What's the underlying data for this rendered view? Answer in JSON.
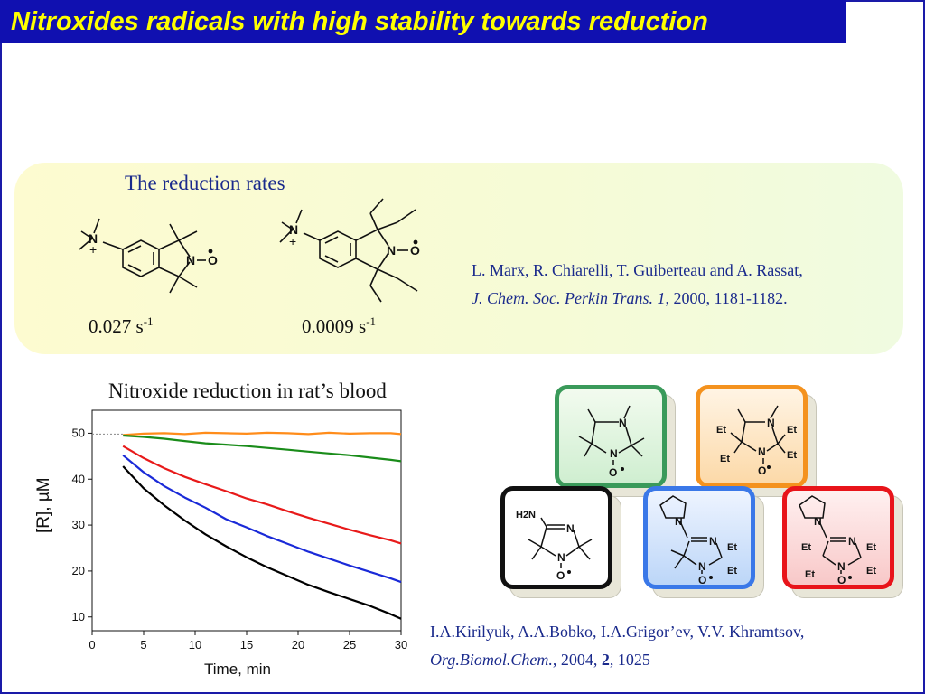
{
  "title": "Nitroxides radicals with high stability towards reduction",
  "rates_section": {
    "heading": "The reduction rates",
    "rate1": "0.027 s",
    "rate1_exp": "-1",
    "rate2": "0.0009 s",
    "rate2_exp": "-1",
    "reference": {
      "authors": "L. Marx, R. Chiarelli, T. Guiberteau and A. Rassat,",
      "journal": "J. Chem. Soc. Perkin Trans. 1",
      "details": ", 2000, 1181-1182."
    }
  },
  "chart_data": {
    "type": "line",
    "title": "Nitroxide reduction in rat’s blood",
    "xlabel": "Time, min",
    "ylabel": "[R], µM",
    "xlim": [
      0,
      30
    ],
    "ylim": [
      7,
      55
    ],
    "xticks": [
      0,
      5,
      10,
      15,
      20,
      25,
      30
    ],
    "yticks": [
      10,
      20,
      30,
      40,
      50
    ],
    "series": [
      {
        "color": "#ff8c1a",
        "x": [
          3,
          5,
          7,
          9,
          11,
          13,
          15,
          17,
          19,
          21,
          23,
          25,
          27,
          29,
          30
        ],
        "values": [
          49.6,
          49.9,
          50.0,
          49.8,
          50.1,
          50.0,
          49.9,
          50.1,
          50.0,
          49.8,
          50.1,
          49.9,
          50.0,
          50.0,
          49.8
        ]
      },
      {
        "color": "#1a8c1a",
        "x": [
          3,
          5,
          7,
          9,
          11,
          13,
          15,
          17,
          19,
          21,
          23,
          25,
          27,
          29,
          30
        ],
        "values": [
          49.5,
          49.2,
          48.8,
          48.3,
          47.8,
          47.5,
          47.2,
          46.8,
          46.4,
          46.0,
          45.6,
          45.2,
          44.7,
          44.2,
          43.9
        ]
      },
      {
        "color": "#e81a1a",
        "x": [
          3,
          5,
          7,
          9,
          11,
          13,
          15,
          17,
          19,
          21,
          23,
          25,
          27,
          29,
          30
        ],
        "values": [
          47.2,
          44.6,
          42.4,
          40.5,
          38.9,
          37.4,
          35.8,
          34.5,
          33.0,
          31.6,
          30.3,
          29.0,
          27.8,
          26.7,
          26.0
        ]
      },
      {
        "color": "#1a2ad8",
        "x": [
          3,
          5,
          7,
          9,
          11,
          13,
          15,
          17,
          19,
          21,
          23,
          25,
          27,
          29,
          30
        ],
        "values": [
          45.2,
          41.5,
          38.5,
          36.0,
          33.8,
          31.3,
          29.5,
          27.6,
          25.9,
          24.2,
          22.7,
          21.2,
          19.8,
          18.4,
          17.6
        ]
      },
      {
        "color": "#000000",
        "x": [
          3,
          5,
          7,
          9,
          11,
          13,
          15,
          17,
          19,
          21,
          23,
          25,
          27,
          29,
          30
        ],
        "values": [
          42.8,
          38.0,
          34.3,
          31.0,
          28.0,
          25.4,
          23.0,
          20.8,
          18.9,
          17.0,
          15.4,
          13.9,
          12.4,
          10.6,
          9.6
        ]
      }
    ],
    "reference_line": {
      "color": "#888888",
      "from": [
        0,
        49.8
      ],
      "to": [
        3,
        49.8
      ]
    }
  },
  "molecules": {
    "et_label": "Et",
    "n_label": "N",
    "o_label": "O",
    "amine_label": "H2N",
    "box_colors": [
      "#3a9a5a",
      "#f4921e",
      "#111111",
      "#3a78e8",
      "#e8141a"
    ]
  },
  "reference2": {
    "authors": "I.A.Kirilyuk, A.A.Bobko, I.A.Grigor’ev, V.V. Khramtsov,",
    "journal": "Org.Biomol.Chem.",
    "year_sep": ", 2004, ",
    "volume": "2",
    "pages": ", 1025"
  }
}
